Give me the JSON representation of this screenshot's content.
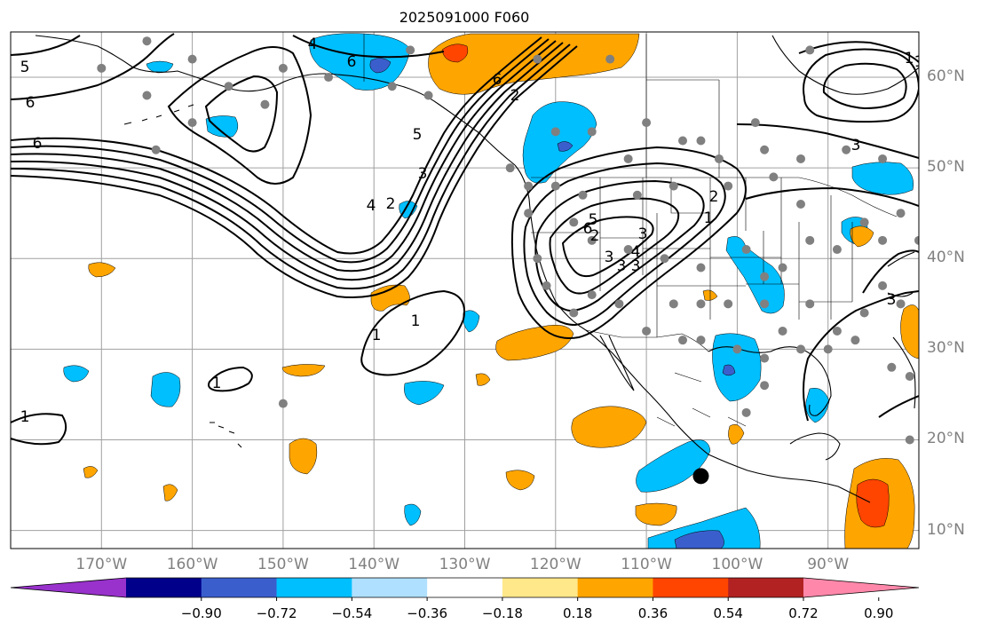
{
  "title": "2025091000 F060",
  "map": {
    "lat_ticks": [
      {
        "value": 60,
        "label": "60°N"
      },
      {
        "value": 50,
        "label": "50°N"
      },
      {
        "value": 40,
        "label": "40°N"
      },
      {
        "value": 30,
        "label": "30°N"
      },
      {
        "value": 20,
        "label": "20°N"
      },
      {
        "value": 10,
        "label": "10°N"
      }
    ],
    "lon_ticks": [
      {
        "value": -170,
        "label": "170°W"
      },
      {
        "value": -160,
        "label": "160°W"
      },
      {
        "value": -150,
        "label": "150°W"
      },
      {
        "value": -140,
        "label": "140°W"
      },
      {
        "value": -130,
        "label": "130°W"
      },
      {
        "value": -120,
        "label": "120°W"
      },
      {
        "value": -110,
        "label": "110°W"
      },
      {
        "value": -100,
        "label": "100°W"
      },
      {
        "value": -90,
        "label": "90°W"
      }
    ],
    "extent": {
      "lon_min": -180,
      "lon_max": -80,
      "lat_min": 8,
      "lat_max": 65
    },
    "contour_labels": [
      "5",
      "6",
      "6",
      "6",
      "4",
      "6",
      "5",
      "4",
      "3",
      "2",
      "1",
      "1",
      "2",
      "3",
      "3",
      "6",
      "5",
      "4",
      "3",
      "3",
      "1",
      "2",
      "1",
      "1",
      "3",
      "3",
      "2",
      "1",
      "1"
    ],
    "marker": {
      "lon": -104,
      "lat": 16
    },
    "colors": {
      "land_border": "#000000",
      "grid": "#a0a0a0",
      "station": "#808080",
      "marker": "#000000"
    }
  },
  "colorbar": {
    "ticks": [
      "−0.90",
      "−0.72",
      "−0.54",
      "−0.36",
      "−0.18",
      "0.18",
      "0.36",
      "0.54",
      "0.72",
      "0.90"
    ],
    "colors": [
      "#9932cc",
      "#00008b",
      "#3a5fcd",
      "#00bfff",
      "#b0e0ff",
      "#ffffff",
      "#ffe88a",
      "#ffa500",
      "#ff4500",
      "#b22222",
      "#ff88aa"
    ]
  }
}
